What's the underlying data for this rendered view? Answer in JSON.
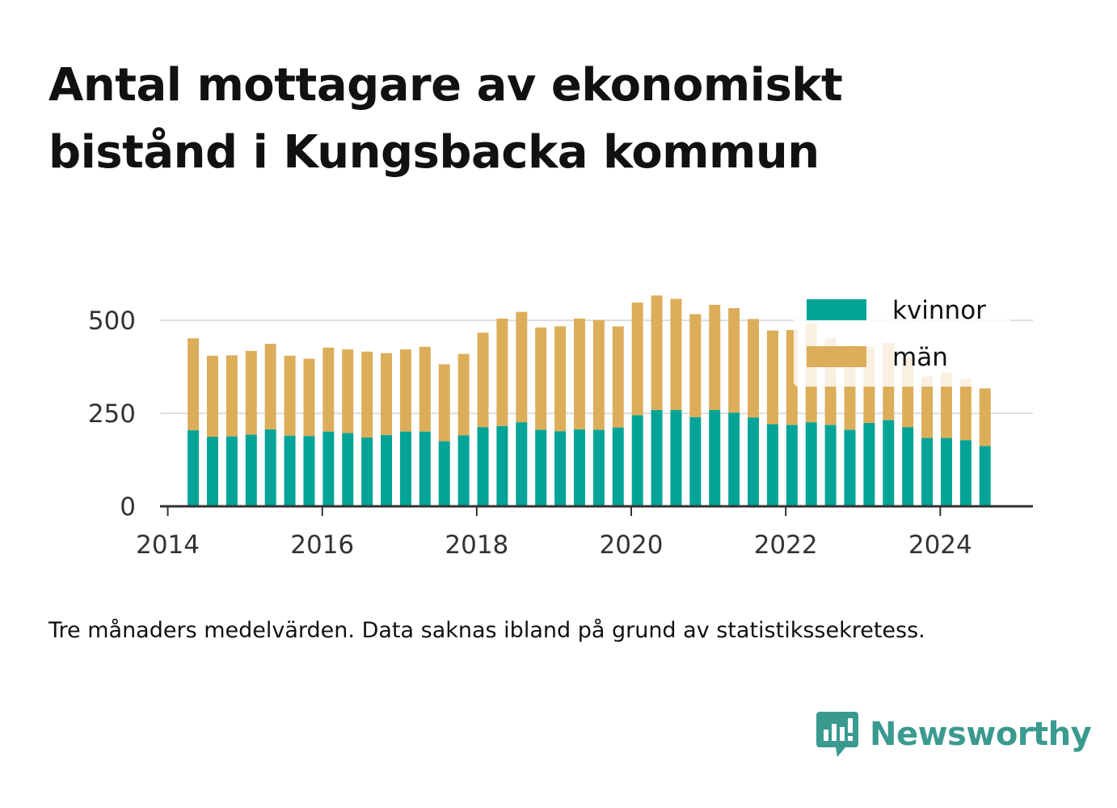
{
  "title_lines": [
    "Antal mottagare av ekonomiskt",
    "bistånd i Kungsbacka kommun"
  ],
  "footnote": "Tre månaders medelvärden. Data saknas ibland på grund av statistikssekretess.",
  "brand": "Newsworthy",
  "colors": {
    "kvinnor": "#03a497",
    "man": "#dcae5a",
    "grid": "#dddddd",
    "axis": "#333333",
    "brand": "#3a9a90"
  },
  "chart_data": {
    "type": "bar",
    "stacked": true,
    "title": "Antal mottagare av ekonomiskt bistånd i Kungsbacka kommun",
    "xlabel": "",
    "ylabel": "",
    "x_range": [
      2013.9,
      2025.2
    ],
    "ylim": [
      0,
      520
    ],
    "yticks": [
      0,
      250,
      500
    ],
    "xticks": [
      2014,
      2016,
      2018,
      2020,
      2022,
      2024
    ],
    "legend": {
      "position": "top-right",
      "entries": [
        "kvinnor",
        "män"
      ]
    },
    "x": [
      2014.33,
      2014.58,
      2014.83,
      2015.08,
      2015.33,
      2015.58,
      2015.83,
      2016.08,
      2016.33,
      2016.58,
      2016.83,
      2017.08,
      2017.33,
      2017.58,
      2017.83,
      2018.08,
      2018.33,
      2018.58,
      2018.83,
      2019.08,
      2019.33,
      2019.58,
      2019.83,
      2020.08,
      2020.33,
      2020.58,
      2020.83,
      2021.08,
      2021.33,
      2021.58,
      2021.83,
      2022.08,
      2022.33,
      2022.58,
      2022.83,
      2023.08,
      2023.33,
      2023.58,
      2023.83,
      2024.08,
      2024.33,
      2024.58
    ],
    "series": [
      {
        "name": "kvinnor",
        "values": [
          205,
          187,
          188,
          193,
          207,
          190,
          189,
          201,
          197,
          185,
          192,
          201,
          201,
          175,
          191,
          213,
          216,
          226,
          206,
          202,
          207,
          206,
          212,
          245,
          259,
          259,
          240,
          259,
          252,
          239,
          221,
          219,
          226,
          219,
          206,
          224,
          232,
          213,
          184,
          184,
          178,
          162
        ]
      },
      {
        "name": "män",
        "values": [
          247,
          218,
          218,
          225,
          230,
          215,
          208,
          226,
          225,
          231,
          220,
          221,
          228,
          207,
          219,
          254,
          289,
          297,
          275,
          282,
          298,
          295,
          272,
          303,
          308,
          299,
          277,
          283,
          281,
          265,
          252,
          255,
          265,
          233,
          226,
          204,
          207,
          186,
          165,
          176,
          165,
          155
        ]
      }
    ]
  }
}
